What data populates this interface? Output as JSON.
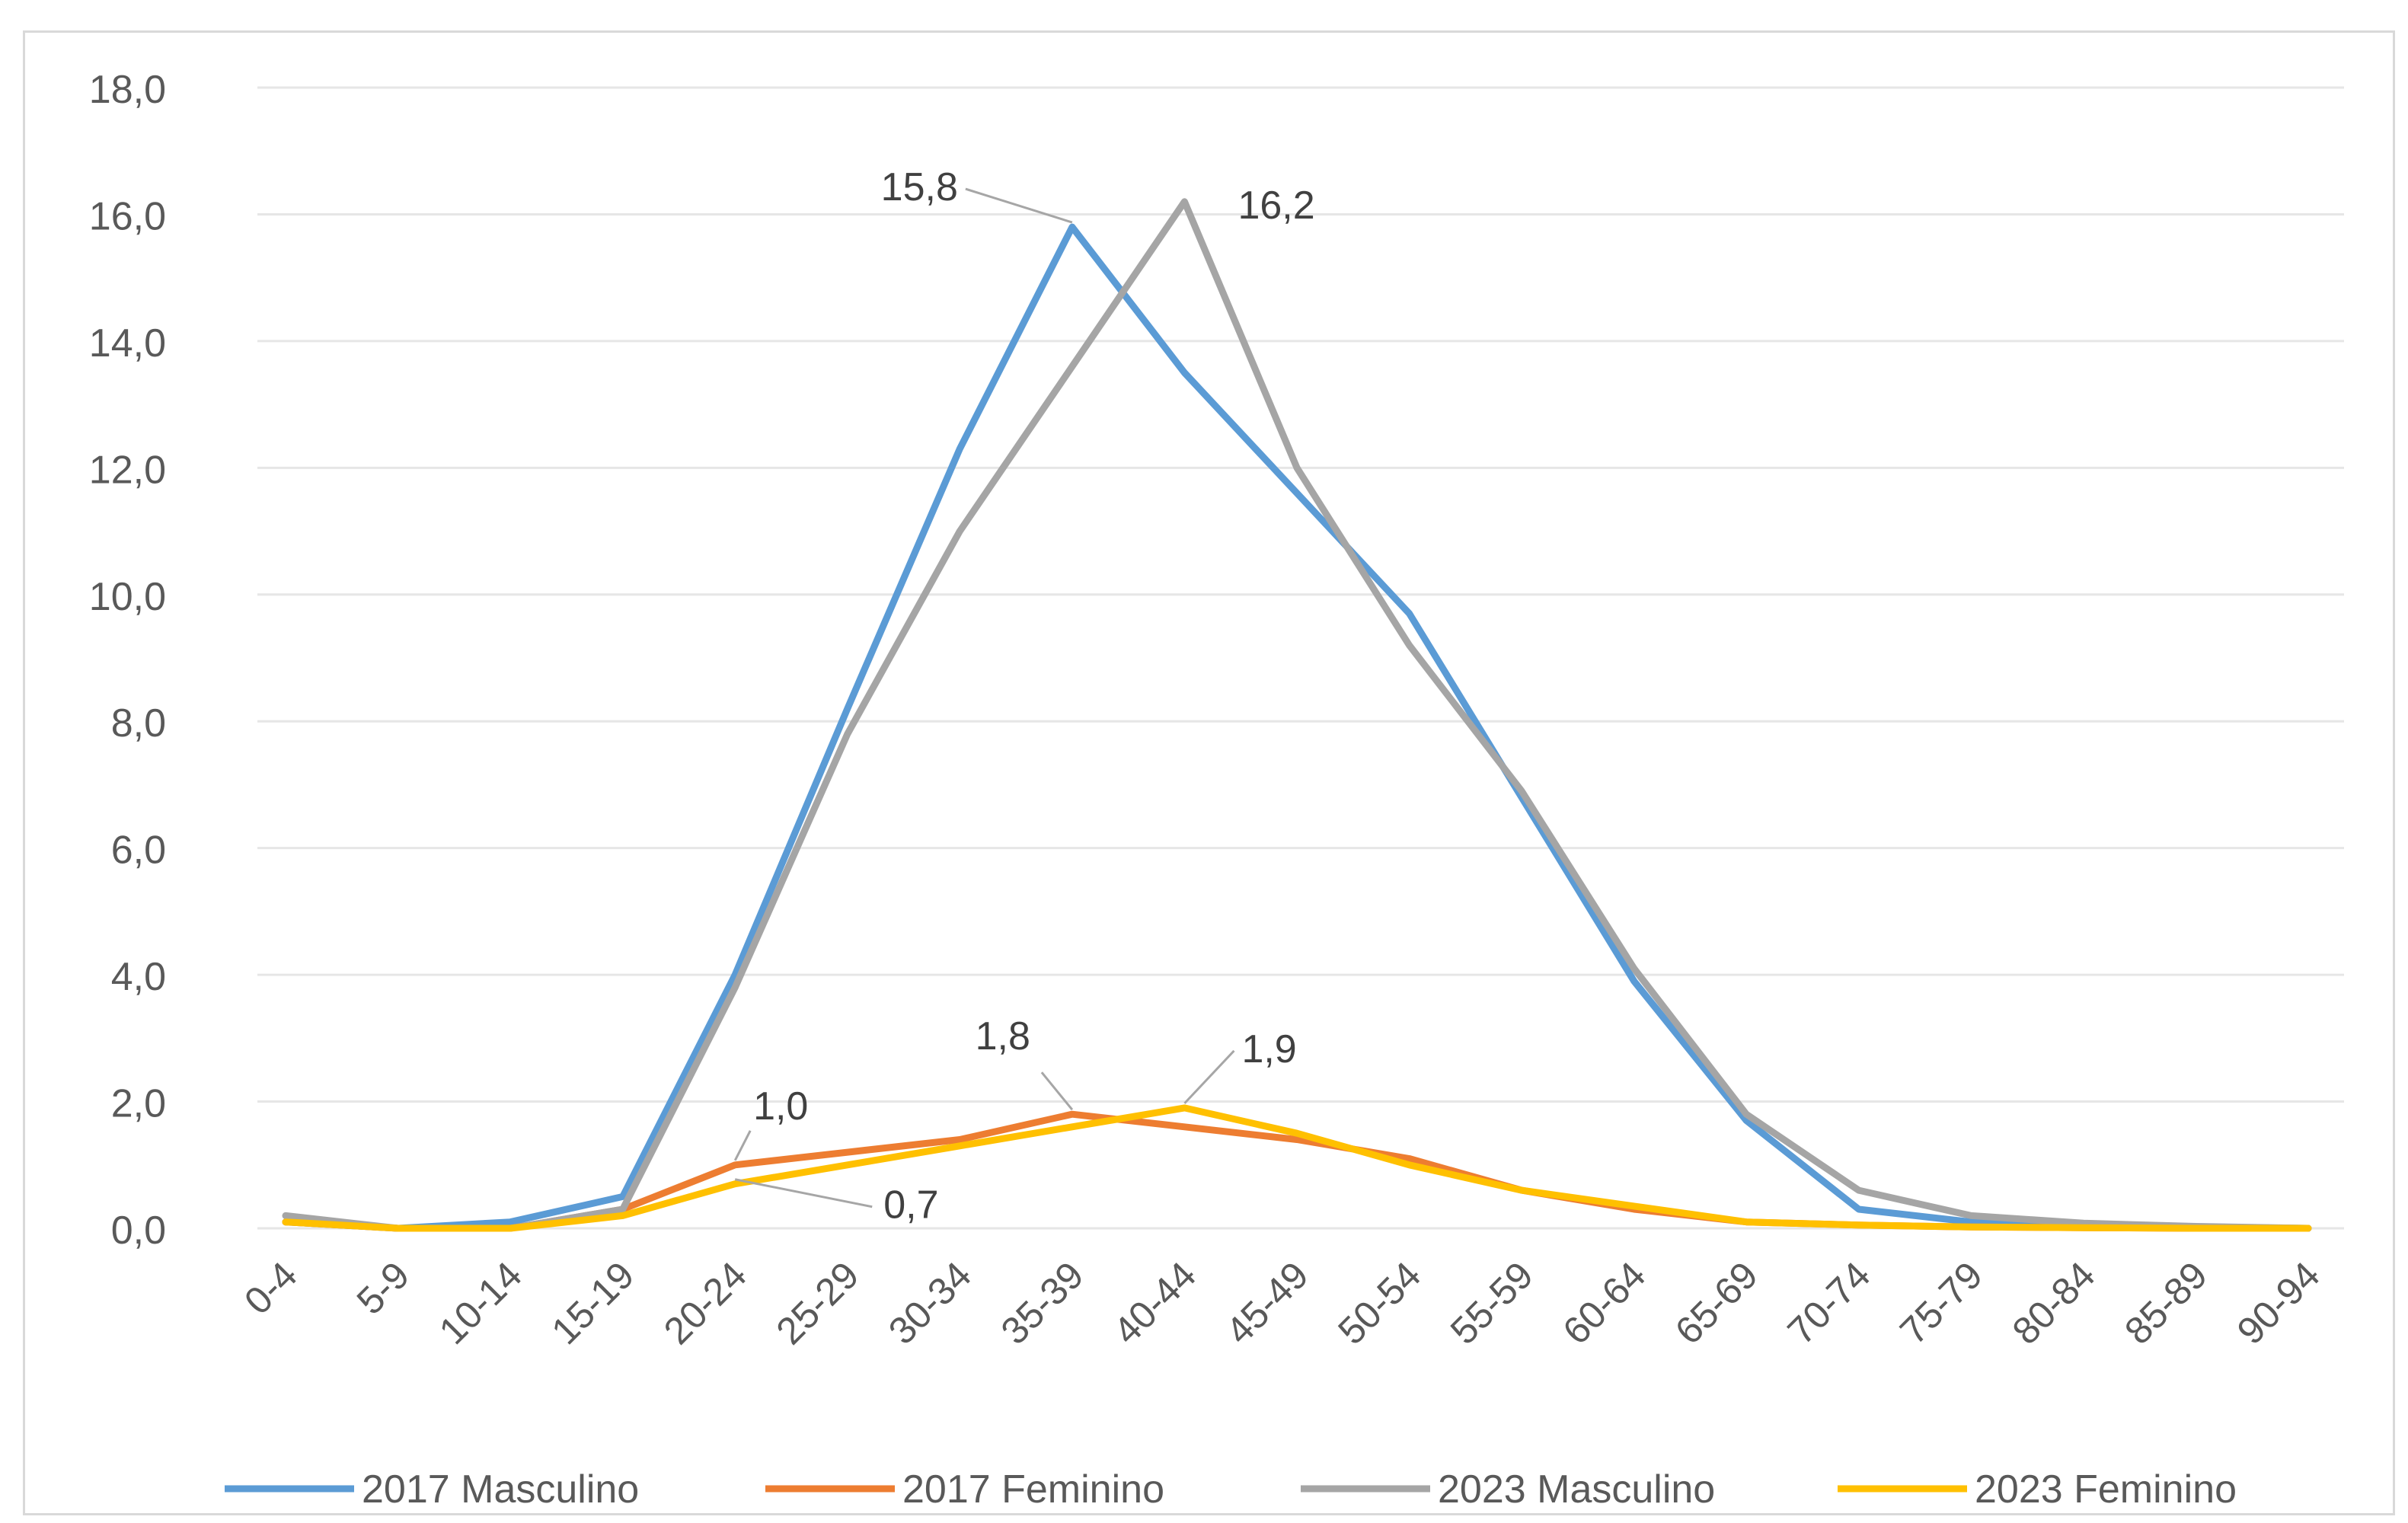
{
  "chart_data": {
    "type": "line",
    "title": "",
    "xlabel": "",
    "ylabel": "",
    "ylim": [
      0,
      18
    ],
    "yticks": [
      "0,0",
      "2,0",
      "4,0",
      "6,0",
      "8,0",
      "10,0",
      "12,0",
      "14,0",
      "16,0",
      "18,0"
    ],
    "grid": true,
    "legend": "bottom",
    "categories": [
      "0-4",
      "5-9",
      "10-14",
      "15-19",
      "20-24",
      "25-29",
      "30-34",
      "35-39",
      "40-44",
      "45-49",
      "50-54",
      "55-59",
      "60-64",
      "65-69",
      "70-74",
      "75-79",
      "80-84",
      "85-89",
      "90-94"
    ],
    "series": [
      {
        "name": "2017 Masculino",
        "color": "#5b9bd5",
        "values": [
          0.1,
          0.0,
          0.1,
          0.5,
          4.0,
          8.2,
          12.3,
          15.8,
          13.5,
          11.6,
          9.7,
          6.8,
          3.9,
          1.7,
          0.3,
          0.1,
          0.05,
          0.02,
          0.0
        ]
      },
      {
        "name": "2017 Feminino",
        "color": "#ed7d31",
        "values": [
          0.1,
          0.0,
          0.0,
          0.3,
          1.0,
          1.2,
          1.4,
          1.8,
          1.6,
          1.4,
          1.1,
          0.6,
          0.3,
          0.1,
          0.05,
          0.02,
          0.01,
          0.0,
          0.0
        ]
      },
      {
        "name": "2023 Masculino",
        "color": "#a5a5a5",
        "values": [
          0.2,
          0.0,
          0.0,
          0.3,
          3.8,
          7.8,
          11.0,
          13.6,
          16.2,
          12.0,
          9.2,
          6.9,
          4.1,
          1.8,
          0.6,
          0.2,
          0.08,
          0.03,
          0.0
        ]
      },
      {
        "name": "2023 Feminino",
        "color": "#ffc000",
        "values": [
          0.1,
          0.0,
          0.0,
          0.2,
          0.7,
          1.0,
          1.3,
          1.6,
          1.9,
          1.5,
          1.0,
          0.6,
          0.35,
          0.1,
          0.05,
          0.02,
          0.01,
          0.0,
          0.0
        ]
      }
    ],
    "annotations": [
      {
        "text": "15,8",
        "series": 0,
        "index": 7
      },
      {
        "text": "16,2",
        "series": 2,
        "index": 8
      },
      {
        "text": "1,8",
        "series": 1,
        "index": 7
      },
      {
        "text": "1,9",
        "series": 3,
        "index": 8
      },
      {
        "text": "1,0",
        "series": 1,
        "index": 4
      },
      {
        "text": "0,7",
        "series": 3,
        "index": 4
      }
    ]
  }
}
